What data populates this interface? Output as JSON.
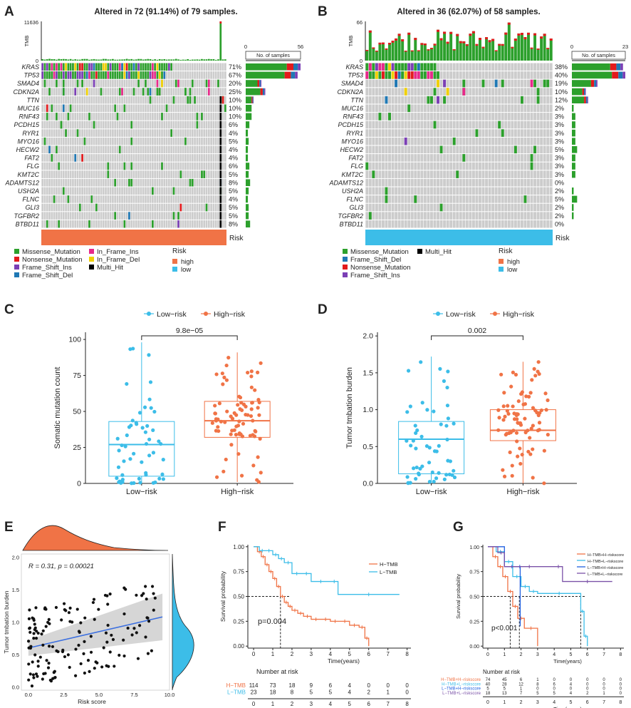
{
  "panel_letters": [
    "A",
    "B",
    "C",
    "D",
    "E",
    "F",
    "G"
  ],
  "colors": {
    "missense": "#2ca02c",
    "nonsense": "#e31a1c",
    "frame_shift_ins": "#7b3fb5",
    "frame_shift_del": "#1f78b4",
    "in_frame_ins": "#e7298a",
    "in_frame_del": "#f0d000",
    "multi_hit": "#000000",
    "grey_cell": "#cccccc",
    "high": "#f07346",
    "low": "#3cbde8",
    "regression": "#3b6fe0",
    "km_h_tmb": "#f07346",
    "km_l_tmb": "#3cbde8",
    "g_hh": "#f07346",
    "g_hl": "#3cbde8",
    "g_lh": "#2060e0",
    "g_ll": "#7b52a8"
  },
  "chart_data": [
    {
      "id": "A",
      "type": "oncoplot",
      "title": "Altered in 72 (91.14%) of 79 samples.",
      "tmb_label": "TMB",
      "tmb_max": "11636",
      "tmb_min": "0",
      "side_axis_label": "No. of samples",
      "side_axis_min": "0",
      "side_axis_max": "56",
      "side_max": 56,
      "n_samples": 79,
      "risk_group": "high",
      "risk_label": "Risk",
      "genes": [
        {
          "name": "KRAS",
          "pct": "71%"
        },
        {
          "name": "TP53",
          "pct": "67%"
        },
        {
          "name": "SMAD4",
          "pct": "20%"
        },
        {
          "name": "CDKN2A",
          "pct": "25%"
        },
        {
          "name": "TTN",
          "pct": "10%"
        },
        {
          "name": "MUC16",
          "pct": "10%"
        },
        {
          "name": "RNF43",
          "pct": "10%"
        },
        {
          "name": "PCDH15",
          "pct": "6%"
        },
        {
          "name": "RYR1",
          "pct": "4%"
        },
        {
          "name": "MYO16",
          "pct": "5%"
        },
        {
          "name": "HECW2",
          "pct": "4%"
        },
        {
          "name": "FAT2",
          "pct": "4%"
        },
        {
          "name": "FLG",
          "pct": "6%"
        },
        {
          "name": "KMT2C",
          "pct": "5%"
        },
        {
          "name": "ADAMTS12",
          "pct": "8%"
        },
        {
          "name": "USH2A",
          "pct": "5%"
        },
        {
          "name": "FLNC",
          "pct": "4%"
        },
        {
          "name": "GLI3",
          "pct": "5%"
        },
        {
          "name": "TGFBR2",
          "pct": "5%"
        },
        {
          "name": "BTBD11",
          "pct": "8%"
        }
      ],
      "legend_items": [
        {
          "label": "Missense_Mutation",
          "key": "missense"
        },
        {
          "label": "Nonsense_Mutation",
          "key": "nonsense"
        },
        {
          "label": "Frame_Shift_Ins",
          "key": "frame_shift_ins"
        },
        {
          "label": "Frame_Shift_Del",
          "key": "frame_shift_del"
        },
        {
          "label": "In_Frame_Ins",
          "key": "in_frame_ins"
        },
        {
          "label": "In_Frame_Del",
          "key": "in_frame_del"
        },
        {
          "label": "Multi_Hit",
          "key": "multi_hit"
        }
      ],
      "risk_legend": [
        {
          "label": "high",
          "key": "high"
        },
        {
          "label": "low",
          "key": "low"
        }
      ]
    },
    {
      "id": "B",
      "type": "oncoplot",
      "title": "Altered in 36 (62.07%) of 58 samples.",
      "tmb_label": "TMB",
      "tmb_max": "66",
      "tmb_min": "0",
      "side_axis_label": "No. of samples",
      "side_axis_min": "0",
      "side_axis_max": "23",
      "side_max": 23,
      "n_samples": 58,
      "risk_group": "low",
      "risk_label": "Risk",
      "genes": [
        {
          "name": "KRAS",
          "pct": "38%"
        },
        {
          "name": "TP53",
          "pct": "40%"
        },
        {
          "name": "SMAD4",
          "pct": "19%"
        },
        {
          "name": "CDKN2A",
          "pct": "10%"
        },
        {
          "name": "TTN",
          "pct": "12%"
        },
        {
          "name": "MUC16",
          "pct": "2%"
        },
        {
          "name": "RNF43",
          "pct": "3%"
        },
        {
          "name": "PCDH15",
          "pct": "3%"
        },
        {
          "name": "RYR1",
          "pct": "3%"
        },
        {
          "name": "MYO16",
          "pct": "3%"
        },
        {
          "name": "HECW2",
          "pct": "5%"
        },
        {
          "name": "FAT2",
          "pct": "3%"
        },
        {
          "name": "FLG",
          "pct": "3%"
        },
        {
          "name": "KMT2C",
          "pct": "3%"
        },
        {
          "name": "ADAMTS12",
          "pct": "0%"
        },
        {
          "name": "USH2A",
          "pct": "2%"
        },
        {
          "name": "FLNC",
          "pct": "5%"
        },
        {
          "name": "GLI3",
          "pct": "2%"
        },
        {
          "name": "TGFBR2",
          "pct": "2%"
        },
        {
          "name": "BTBD11",
          "pct": "0%"
        }
      ],
      "legend_items": [
        {
          "label": "Missense_Mutation",
          "key": "missense"
        },
        {
          "label": "Frame_Shift_Del",
          "key": "frame_shift_del"
        },
        {
          "label": "Nonsense_Mutation",
          "key": "nonsense"
        },
        {
          "label": "Frame_Shift_Ins",
          "key": "frame_shift_ins"
        },
        {
          "label": "Multi_Hit",
          "key": "multi_hit"
        }
      ],
      "risk_legend": [
        {
          "label": "high",
          "key": "high"
        },
        {
          "label": "low",
          "key": "low"
        }
      ]
    },
    {
      "id": "C",
      "type": "boxplot",
      "legend": [
        "Low−risk",
        "High−risk"
      ],
      "categories": [
        "Low−risk",
        "High−risk"
      ],
      "ylabel": "Somatic mutation count",
      "ylim": [
        0,
        105
      ],
      "yticks": [
        0,
        25,
        50,
        75,
        100
      ],
      "pvalue": "9.8e−05",
      "series": [
        {
          "name": "Low−risk",
          "q1": 5,
          "median": 27,
          "q3": 43,
          "whisker_low": 0,
          "whisker_high": 98
        },
        {
          "name": "High−risk",
          "q1": 32,
          "median": 43.5,
          "q3": 57,
          "whisker_low": 1,
          "whisker_high": 91
        }
      ]
    },
    {
      "id": "D",
      "type": "boxplot",
      "legend": [
        "Low−risk",
        "High−risk"
      ],
      "categories": [
        "Low−risk",
        "High−risk"
      ],
      "ylabel": "Tumor tmbation burden",
      "ylim": [
        0,
        2.05
      ],
      "yticks": [
        0.0,
        0.5,
        1.0,
        1.5,
        2.0
      ],
      "pvalue": "0.002",
      "series": [
        {
          "name": "Low−risk",
          "q1": 0.13,
          "median": 0.6,
          "q3": 0.84,
          "whisker_low": 0.0,
          "whisker_high": 1.72
        },
        {
          "name": "High−risk",
          "q1": 0.58,
          "median": 0.72,
          "q3": 1.0,
          "whisker_low": 0.0,
          "whisker_high": 1.65
        }
      ]
    },
    {
      "id": "E",
      "type": "scatter",
      "annotation": "R = 0.31, p = 0.00021",
      "xlabel": "Risk score",
      "ylabel": "Tumor tmbation burden",
      "xlim": [
        -0.5,
        10
      ],
      "ylim": [
        -0.05,
        2.05
      ],
      "xticks": [
        "0.0",
        "2.5",
        "5.0",
        "7.5",
        "10.0"
      ],
      "yticks": [
        "0.0",
        "0.5",
        "1.0",
        "1.5",
        "2.0"
      ],
      "regression": {
        "x0": 0,
        "y0": 0.6,
        "x1": 9.5,
        "y1": 1.08
      }
    },
    {
      "id": "F",
      "type": "line",
      "ylabel": "Survival probability",
      "xlabel": "Time(years)",
      "xlim": [
        -0.3,
        8.2
      ],
      "ylim": [
        -0.02,
        1.02
      ],
      "xticks": [
        "0",
        "1",
        "2",
        "3",
        "4",
        "5",
        "6",
        "7",
        "8"
      ],
      "yticks": [
        "0.00",
        "0.25",
        "0.50",
        "0.75",
        "1.00"
      ],
      "pvalue": "p=0.004",
      "series": [
        {
          "name": "H−TMB",
          "color_key": "km_h_tmb",
          "x": [
            0,
            0.2,
            0.4,
            0.6,
            0.8,
            1.0,
            1.2,
            1.4,
            1.6,
            1.8,
            2.0,
            2.3,
            2.6,
            3.0,
            3.5,
            4.0,
            4.5,
            5.0,
            5.5,
            5.8,
            6.0
          ],
          "y": [
            1.0,
            0.95,
            0.9,
            0.82,
            0.75,
            0.68,
            0.6,
            0.5,
            0.44,
            0.4,
            0.36,
            0.33,
            0.3,
            0.27,
            0.27,
            0.25,
            0.25,
            0.21,
            0.19,
            0.08,
            0.0
          ]
        },
        {
          "name": "L−TMB",
          "color_key": "km_l_tmb",
          "x": [
            0,
            0.3,
            0.6,
            1.0,
            1.3,
            1.6,
            2.0,
            2.5,
            3.0,
            4.0,
            4.4,
            7.6
          ],
          "y": [
            1.0,
            0.96,
            0.96,
            0.92,
            0.88,
            0.84,
            0.73,
            0.73,
            0.65,
            0.65,
            0.52,
            0.52
          ]
        }
      ],
      "risk_table": {
        "title": "Number at risk",
        "rows": [
          {
            "name": "H−TMB",
            "color_key": "km_h_tmb",
            "values": [
              "114",
              "73",
              "18",
              "9",
              "6",
              "4",
              "0",
              "0",
              "0"
            ]
          },
          {
            "name": "L−TMB",
            "color_key": "km_l_tmb",
            "values": [
              "23",
              "18",
              "8",
              "5",
              "5",
              "4",
              "2",
              "1",
              "0"
            ]
          }
        ],
        "xlabel": "Time(years)"
      }
    },
    {
      "id": "G",
      "type": "line",
      "ylabel": "Survival probability",
      "xlabel": "Time(years)",
      "xlim": [
        -0.3,
        8.2
      ],
      "ylim": [
        -0.02,
        1.02
      ],
      "xticks": [
        "0",
        "1",
        "2",
        "3",
        "4",
        "5",
        "6",
        "7",
        "8"
      ],
      "yticks": [
        "0.00",
        "0.25",
        "0.50",
        "0.75",
        "1.00"
      ],
      "pvalue": "p<0.001",
      "series": [
        {
          "name": "H−TMB+H−riskscore",
          "color_key": "g_hh",
          "x": [
            0,
            0.3,
            0.6,
            0.9,
            1.2,
            1.5,
            1.8,
            2.2,
            3.0
          ],
          "y": [
            1.0,
            0.9,
            0.8,
            0.7,
            0.55,
            0.4,
            0.28,
            0.18,
            0.0
          ]
        },
        {
          "name": "H−TMB+L−riskscore",
          "color_key": "g_hl",
          "x": [
            0,
            0.5,
            1.0,
            1.5,
            2.0,
            2.5,
            3.0,
            5.6,
            5.8,
            6.0
          ],
          "y": [
            1.0,
            0.95,
            0.85,
            0.7,
            0.6,
            0.55,
            0.53,
            0.35,
            0.1,
            0.0
          ]
        },
        {
          "name": "L−TMB+H−riskscore",
          "color_key": "g_lh",
          "x": [
            0,
            1.0,
            1.9,
            1.95
          ],
          "y": [
            1.0,
            0.8,
            0.8,
            0.2
          ]
        },
        {
          "name": "L−TMB+L−riskscore",
          "color_key": "g_ll",
          "x": [
            0,
            0.6,
            1.0,
            4.0,
            4.5,
            7.5
          ],
          "y": [
            1.0,
            0.94,
            0.8,
            0.8,
            0.65,
            0.65
          ]
        }
      ],
      "risk_table": {
        "title": "Number at risk",
        "rows": [
          {
            "name": "H−TMB+H−riskscore",
            "color_key": "g_hh",
            "values": [
              "74",
              "45",
              "6",
              "1",
              "0",
              "0",
              "0",
              "0",
              "0"
            ]
          },
          {
            "name": "H−TMB+L−riskscore",
            "color_key": "g_hl",
            "values": [
              "40",
              "28",
              "12",
              "8",
              "6",
              "4",
              "0",
              "0",
              "0"
            ]
          },
          {
            "name": "L−TMB+H−riskscore",
            "color_key": "g_lh",
            "values": [
              "5",
              "5",
              "1",
              "0",
              "0",
              "0",
              "0",
              "0",
              "0"
            ]
          },
          {
            "name": "L−TMB+L−riskscore",
            "color_key": "g_ll",
            "values": [
              "18",
              "13",
              "7",
              "5",
              "5",
              "4",
              "2",
              "1",
              "0"
            ]
          }
        ],
        "xlabel": "Time(years)"
      }
    }
  ]
}
